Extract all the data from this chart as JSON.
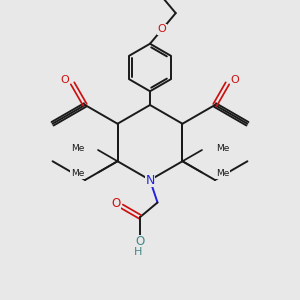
{
  "bg_color": "#e8e8e8",
  "bond_color": "#1a1a1a",
  "bond_width": 1.4,
  "n_color": "#2222dd",
  "o_color": "#cc1111",
  "oh_color": "#448888",
  "figsize": [
    3.0,
    3.0
  ],
  "dpi": 100,
  "xlim": [
    -1,
    11
  ],
  "ylim": [
    -1,
    11
  ]
}
